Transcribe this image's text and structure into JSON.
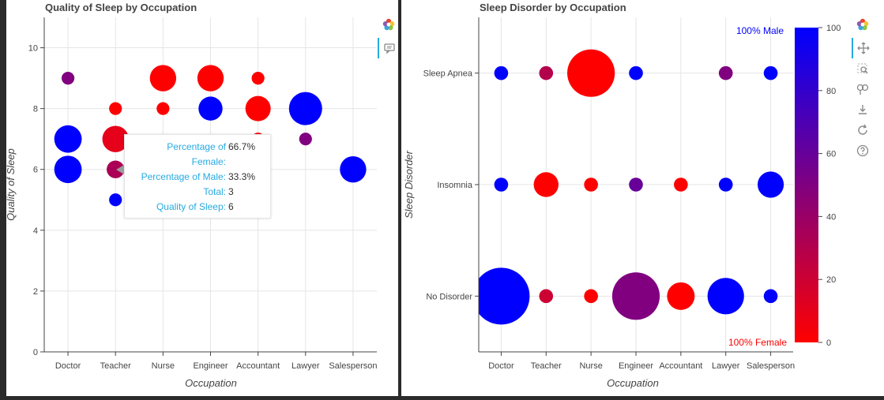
{
  "charts": {
    "left": {
      "title": "Quality of Sleep by Occupation",
      "xlabel": "Occupation",
      "ylabel": "Quality of Sleep",
      "yticks": [
        "0",
        "2",
        "4",
        "6",
        "8",
        "10"
      ]
    },
    "right": {
      "title": "Sleep Disorder by Occupation",
      "xlabel": "Occupation",
      "ylabel": "Sleep Disorder",
      "annot_male": "100% Male",
      "annot_female": "100% Female",
      "colorbar_ticks": [
        "0",
        "20",
        "40",
        "60",
        "80",
        "100"
      ]
    }
  },
  "tooltip": {
    "rows": [
      {
        "label": "Percentage of Female:",
        "value": "66.7%"
      },
      {
        "label": "Percentage of Male:",
        "value": "33.3%"
      },
      {
        "label": "Total:",
        "value": "3"
      },
      {
        "label": "Quality of Sleep:",
        "value": "6"
      }
    ]
  },
  "toolbar": {
    "left": [
      "bokeh-logo-icon",
      "hover-comment-icon"
    ],
    "right": [
      "bokeh-logo-icon",
      "pan-icon",
      "box-zoom-icon",
      "wheel-zoom-icon",
      "save-icon",
      "reset-icon",
      "help-icon"
    ]
  },
  "colors": {
    "female": "#ff0000",
    "male": "#0000ff",
    "accent": "#26aae1"
  },
  "chart_data": [
    {
      "type": "scatter",
      "title": "Quality of Sleep by Occupation",
      "xlabel": "Occupation",
      "ylabel": "Quality of Sleep",
      "categories": [
        "Doctor",
        "Teacher",
        "Nurse",
        "Engineer",
        "Accountant",
        "Lawyer",
        "Salesperson"
      ],
      "ylim": [
        0,
        11
      ],
      "grid": true,
      "size_meaning": "count",
      "color_meaning": "percentage male (0 = red, 100 = blue)",
      "points": [
        {
          "x": "Doctor",
          "y": 9,
          "count": 1,
          "pct_male": 50
        },
        {
          "x": "Doctor",
          "y": 7,
          "count": 10,
          "pct_male": 100
        },
        {
          "x": "Doctor",
          "y": 6,
          "count": 10,
          "pct_male": 100
        },
        {
          "x": "Teacher",
          "y": 8,
          "count": 1,
          "pct_male": 0
        },
        {
          "x": "Teacher",
          "y": 7,
          "count": 9,
          "pct_male": 10
        },
        {
          "x": "Teacher",
          "y": 6,
          "count": 3,
          "pct_male": 33.3
        },
        {
          "x": "Teacher",
          "y": 5,
          "count": 1,
          "pct_male": 100
        },
        {
          "x": "Nurse",
          "y": 9,
          "count": 9,
          "pct_male": 0
        },
        {
          "x": "Nurse",
          "y": 8,
          "count": 1,
          "pct_male": 0
        },
        {
          "x": "Nurse",
          "y": 6,
          "count": 9,
          "pct_male": 0
        },
        {
          "x": "Engineer",
          "y": 9,
          "count": 9,
          "pct_male": 0
        },
        {
          "x": "Engineer",
          "y": 8,
          "count": 7,
          "pct_male": 100
        },
        {
          "x": "Accountant",
          "y": 9,
          "count": 1,
          "pct_male": 0
        },
        {
          "x": "Accountant",
          "y": 8,
          "count": 8,
          "pct_male": 0
        },
        {
          "x": "Accountant",
          "y": 7,
          "count": 1,
          "pct_male": 0
        },
        {
          "x": "Lawyer",
          "y": 8,
          "count": 16,
          "pct_male": 100
        },
        {
          "x": "Lawyer",
          "y": 7,
          "count": 1,
          "pct_male": 50
        },
        {
          "x": "Salesperson",
          "y": 6,
          "count": 9,
          "pct_male": 100
        }
      ]
    },
    {
      "type": "scatter",
      "title": "Sleep Disorder by Occupation",
      "xlabel": "Occupation",
      "ylabel": "Sleep Disorder",
      "categories": [
        "Doctor",
        "Teacher",
        "Nurse",
        "Engineer",
        "Accountant",
        "Lawyer",
        "Salesperson"
      ],
      "y_categories": [
        "No Disorder",
        "Insomnia",
        "Sleep Apnea"
      ],
      "colorbar": {
        "min": 0,
        "max": 100,
        "ticks": [
          0,
          20,
          40,
          60,
          80,
          100
        ]
      },
      "grid": true,
      "points": [
        {
          "x": "Doctor",
          "y": "Sleep Apnea",
          "count": 1,
          "pct_male": 100
        },
        {
          "x": "Teacher",
          "y": "Sleep Apnea",
          "count": 1,
          "pct_male": 30
        },
        {
          "x": "Nurse",
          "y": "Sleep Apnea",
          "count": 30,
          "pct_male": 0
        },
        {
          "x": "Engineer",
          "y": "Sleep Apnea",
          "count": 1,
          "pct_male": 100
        },
        {
          "x": "Lawyer",
          "y": "Sleep Apnea",
          "count": 1,
          "pct_male": 50
        },
        {
          "x": "Salesperson",
          "y": "Sleep Apnea",
          "count": 1,
          "pct_male": 100
        },
        {
          "x": "Doctor",
          "y": "Insomnia",
          "count": 1,
          "pct_male": 100
        },
        {
          "x": "Teacher",
          "y": "Insomnia",
          "count": 6,
          "pct_male": 0
        },
        {
          "x": "Nurse",
          "y": "Insomnia",
          "count": 1,
          "pct_male": 0
        },
        {
          "x": "Engineer",
          "y": "Insomnia",
          "count": 1,
          "pct_male": 60
        },
        {
          "x": "Accountant",
          "y": "Insomnia",
          "count": 1,
          "pct_male": 0
        },
        {
          "x": "Lawyer",
          "y": "Insomnia",
          "count": 1,
          "pct_male": 100
        },
        {
          "x": "Salesperson",
          "y": "Insomnia",
          "count": 7,
          "pct_male": 100
        },
        {
          "x": "Doctor",
          "y": "No Disorder",
          "count": 45,
          "pct_male": 100
        },
        {
          "x": "Teacher",
          "y": "No Disorder",
          "count": 1,
          "pct_male": 20
        },
        {
          "x": "Nurse",
          "y": "No Disorder",
          "count": 1,
          "pct_male": 0
        },
        {
          "x": "Engineer",
          "y": "No Disorder",
          "count": 30,
          "pct_male": 50
        },
        {
          "x": "Accountant",
          "y": "No Disorder",
          "count": 8,
          "pct_male": 0
        },
        {
          "x": "Lawyer",
          "y": "No Disorder",
          "count": 16,
          "pct_male": 100
        },
        {
          "x": "Salesperson",
          "y": "No Disorder",
          "count": 1,
          "pct_male": 100
        }
      ]
    }
  ]
}
